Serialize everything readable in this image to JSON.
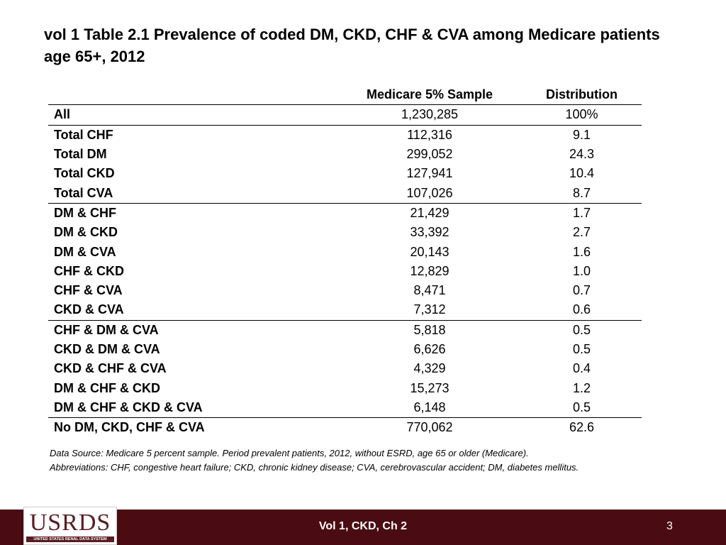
{
  "title": "vol 1 Table 2.1 Prevalence of coded DM, CKD, CHF & CVA among Medicare patients age 65+, 2012",
  "table": {
    "headers": [
      "",
      "Medicare 5% Sample",
      "Distribution"
    ],
    "rows": [
      {
        "label": "All",
        "sample": "1,230,285",
        "distribution": "100%"
      },
      {
        "label": "Total CHF",
        "sample": "112,316",
        "distribution": "9.1"
      },
      {
        "label": "Total DM",
        "sample": "299,052",
        "distribution": "24.3"
      },
      {
        "label": "Total CKD",
        "sample": "127,941",
        "distribution": "10.4"
      },
      {
        "label": "Total CVA",
        "sample": "107,026",
        "distribution": "8.7"
      },
      {
        "label": "DM & CHF",
        "sample": "21,429",
        "distribution": "1.7"
      },
      {
        "label": "DM & CKD",
        "sample": "33,392",
        "distribution": "2.7"
      },
      {
        "label": "DM & CVA",
        "sample": "20,143",
        "distribution": "1.6"
      },
      {
        "label": "CHF & CKD",
        "sample": "12,829",
        "distribution": "1.0"
      },
      {
        "label": "CHF & CVA",
        "sample": "8,471",
        "distribution": "0.7"
      },
      {
        "label": "CKD & CVA",
        "sample": "7,312",
        "distribution": "0.6"
      },
      {
        "label": "CHF & DM & CVA",
        "sample": "5,818",
        "distribution": "0.5"
      },
      {
        "label": "CKD & DM & CVA",
        "sample": "6,626",
        "distribution": "0.5"
      },
      {
        "label": "CKD & CHF & CVA",
        "sample": "4,329",
        "distribution": "0.4"
      },
      {
        "label": "DM & CHF & CKD",
        "sample": "15,273",
        "distribution": "1.2"
      },
      {
        "label": "DM & CHF & CKD & CVA",
        "sample": "6,148",
        "distribution": "0.5"
      },
      {
        "label": "No DM, CKD, CHF & CVA",
        "sample": "770,062",
        "distribution": "62.6"
      }
    ]
  },
  "footnote": {
    "line1": "Data Source: Medicare 5 percent sample. Period prevalent patients, 2012, without ESRD, age 65 or older (Medicare).",
    "line2": "Abbreviations: CHF, congestive heart failure; CKD, chronic kidney disease; CVA, cerebrovascular accident; DM, diabetes mellitus."
  },
  "footer": {
    "logo_text": "USRDS",
    "logo_subtext": "UNITED STATES RENAL DATA SYSTEM",
    "center_text": "Vol 1, CKD, Ch 2",
    "page_number": "3"
  },
  "colors": {
    "footer_bg": "#4a0c12",
    "logo_maroon": "#5a1d22"
  }
}
